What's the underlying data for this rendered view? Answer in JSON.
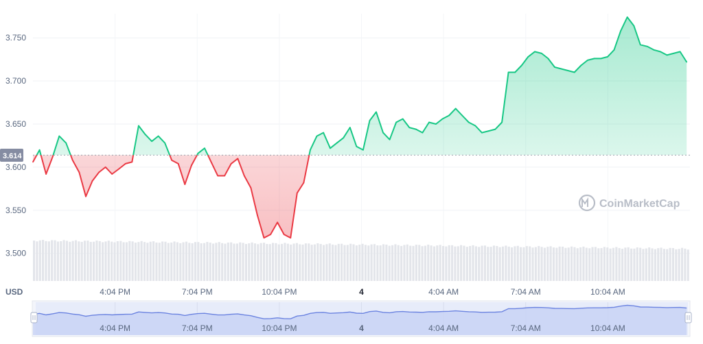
{
  "chart_data": {
    "type": "line",
    "y_axis_unit": "USD",
    "baseline": 3.614,
    "baseline_label": "3.614",
    "ylim": [
      3.468,
      3.778
    ],
    "y_ticks": [
      "3.750",
      "3.700",
      "3.650",
      "3.600",
      "3.550",
      "3.500"
    ],
    "y_tick_values": [
      3.75,
      3.7,
      3.65,
      3.6,
      3.55,
      3.5
    ],
    "x_ticks": [
      "4:04 PM",
      "7:04 PM",
      "10:04 PM",
      "4",
      "4:04 AM",
      "7:04 AM",
      "10:04 AM"
    ],
    "x_range_hours": [
      0,
      24
    ],
    "x_tick_hours": [
      3,
      6,
      9,
      12,
      15,
      18,
      21
    ],
    "x_hours": [
      0.0,
      0.24,
      0.48,
      0.72,
      0.96,
      1.21,
      1.45,
      1.69,
      1.93,
      2.17,
      2.41,
      2.65,
      2.89,
      3.14,
      3.38,
      3.62,
      3.86,
      4.1,
      4.34,
      4.58,
      4.82,
      5.07,
      5.31,
      5.55,
      5.79,
      6.03,
      6.27,
      6.51,
      6.75,
      7.0,
      7.24,
      7.48,
      7.72,
      7.96,
      8.2,
      8.44,
      8.68,
      8.93,
      9.17,
      9.41,
      9.65,
      9.89,
      10.13,
      10.37,
      10.61,
      10.86,
      11.1,
      11.34,
      11.58,
      11.82,
      12.06,
      12.3,
      12.54,
      12.79,
      13.03,
      13.27,
      13.51,
      13.75,
      13.99,
      14.23,
      14.47,
      14.72,
      14.96,
      15.2,
      15.44,
      15.68,
      15.92,
      16.16,
      16.4,
      16.65,
      16.89,
      17.13,
      17.37,
      17.61,
      17.85,
      18.09,
      18.33,
      18.58,
      18.82,
      19.06,
      19.3,
      19.54,
      19.78,
      20.02,
      20.26,
      20.51,
      20.75,
      20.99,
      21.23,
      21.47,
      21.71,
      21.95,
      22.19,
      22.44,
      22.68,
      22.92,
      23.16,
      23.4,
      23.64,
      23.88
    ],
    "series": [
      {
        "values": [
          3.606,
          3.62,
          3.592,
          3.612,
          3.636,
          3.628,
          3.608,
          3.594,
          3.566,
          3.584,
          3.594,
          3.6,
          3.592,
          3.598,
          3.604,
          3.606,
          3.648,
          3.638,
          3.63,
          3.636,
          3.628,
          3.608,
          3.604,
          3.58,
          3.602,
          3.616,
          3.622,
          3.606,
          3.59,
          3.59,
          3.604,
          3.61,
          3.59,
          3.576,
          3.544,
          3.518,
          3.522,
          3.536,
          3.522,
          3.518,
          3.57,
          3.582,
          3.62,
          3.636,
          3.64,
          3.622,
          3.628,
          3.634,
          3.646,
          3.624,
          3.62,
          3.654,
          3.664,
          3.64,
          3.632,
          3.652,
          3.656,
          3.646,
          3.644,
          3.64,
          3.652,
          3.65,
          3.656,
          3.66,
          3.668,
          3.66,
          3.652,
          3.648,
          3.64,
          3.642,
          3.644,
          3.652,
          3.71,
          3.71,
          3.718,
          3.728,
          3.734,
          3.732,
          3.726,
          3.716,
          3.714,
          3.712,
          3.71,
          3.718,
          3.724,
          3.726,
          3.726,
          3.728,
          3.736,
          3.758,
          3.774,
          3.764,
          3.742,
          3.74,
          3.736,
          3.734,
          3.73,
          3.732,
          3.734,
          3.722
        ]
      }
    ],
    "colors": {
      "up": "#16c784",
      "down": "#ea3943"
    },
    "grid": true,
    "volume_bars": true,
    "navigator": true
  },
  "watermark": {
    "text": "CoinMarketCap"
  }
}
